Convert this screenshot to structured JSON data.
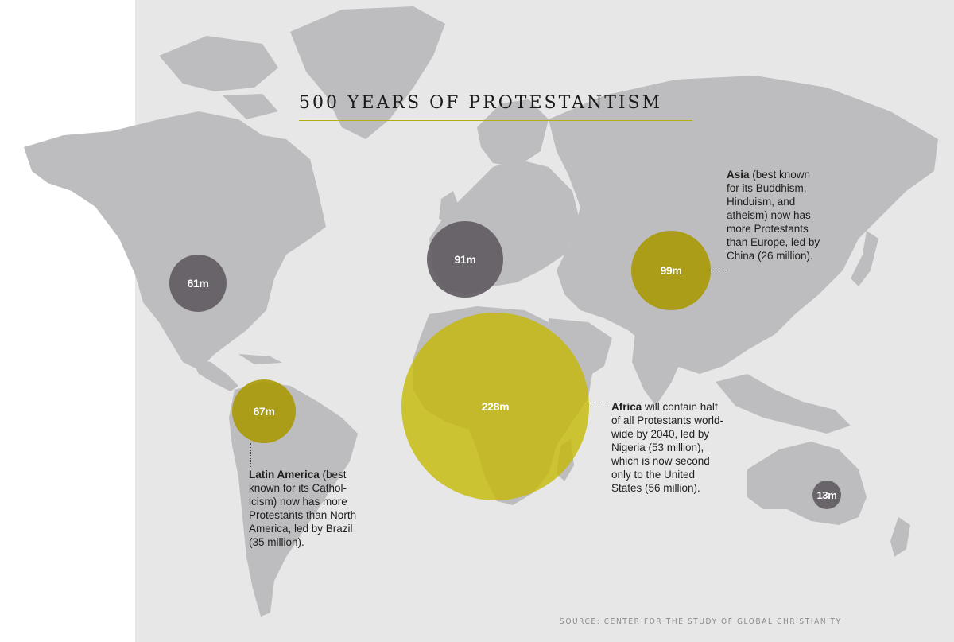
{
  "title": "500 YEARS OF PROTESTANTISM",
  "source": "SOURCE: CENTER FOR THE STUDY OF GLOBAL CHRISTIANITY",
  "colors": {
    "background": "#e8e7e8",
    "land": "#bdbcbe",
    "gray_circle": "#625e63",
    "olive_circle": "#a89800",
    "yellow_circle": "#c4b800",
    "title_rule": "#b3ad18"
  },
  "regions": [
    {
      "id": "north-america",
      "label": "61m",
      "value_millions": 61,
      "color": "gray"
    },
    {
      "id": "europe",
      "label": "91m",
      "value_millions": 91,
      "color": "gray"
    },
    {
      "id": "asia",
      "label": "99m",
      "value_millions": 99,
      "color": "olive"
    },
    {
      "id": "latin-america",
      "label": "67m",
      "value_millions": 67,
      "color": "olive"
    },
    {
      "id": "africa",
      "label": "228m",
      "value_millions": 228,
      "color": "yellow"
    },
    {
      "id": "oceania",
      "label": "13m",
      "value_millions": 13,
      "color": "gray"
    }
  ],
  "notes": {
    "asia": {
      "bold": "Asia",
      "lines": [
        " (best known",
        "for its Buddhism,",
        "Hinduism, and",
        "atheism) now has",
        "more Protestants",
        "than Europe, led by",
        "China (26 million)."
      ]
    },
    "africa": {
      "bold": "Africa",
      "lines": [
        " will contain half",
        "of all Protestants world-",
        "wide by 2040, led by",
        "Nigeria (53 million),",
        "which is now second",
        "only to the United",
        "States (56 million)."
      ]
    },
    "latin_america": {
      "bold": "Latin America",
      "lines": [
        " (best",
        "known for its Cathol-",
        "icism) now has more",
        "Protestants than North",
        "America, led by Brazil",
        "(35 million)."
      ]
    }
  }
}
